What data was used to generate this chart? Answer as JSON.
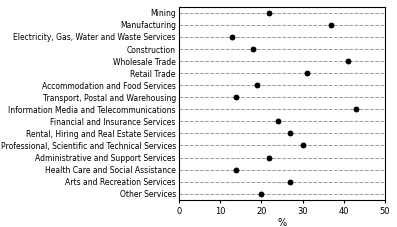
{
  "categories": [
    "Mining",
    "Manufacturing",
    "Electricity, Gas, Water and Waste Services",
    "Construction",
    "Wholesale Trade",
    "Retail Trade",
    "Accommodation and Food Services",
    "Transport, Postal and Warehousing",
    "Information Media and Telecommunications",
    "Financial and Insurance Services",
    "Rental, Hiring and Real Estate Services",
    "Professional, Scientific and Technical Services",
    "Administrative and Support Services",
    "Health Care and Social Assistance",
    "Arts and Recreation Services",
    "Other Services"
  ],
  "values": [
    22,
    37,
    13,
    18,
    41,
    31,
    19,
    14,
    43,
    24,
    27,
    30,
    22,
    14,
    27,
    20
  ],
  "dot_color": "#000000",
  "dot_size": 18,
  "line_color": "#999999",
  "line_style": "--",
  "line_width": 0.7,
  "xlabel": "%",
  "xlim": [
    0,
    50
  ],
  "xticks": [
    0,
    10,
    20,
    30,
    40,
    50
  ],
  "background_color": "#ffffff",
  "tick_fontsize": 6,
  "label_fontsize": 5.5,
  "xlabel_fontsize": 7,
  "spine_color": "#000000"
}
